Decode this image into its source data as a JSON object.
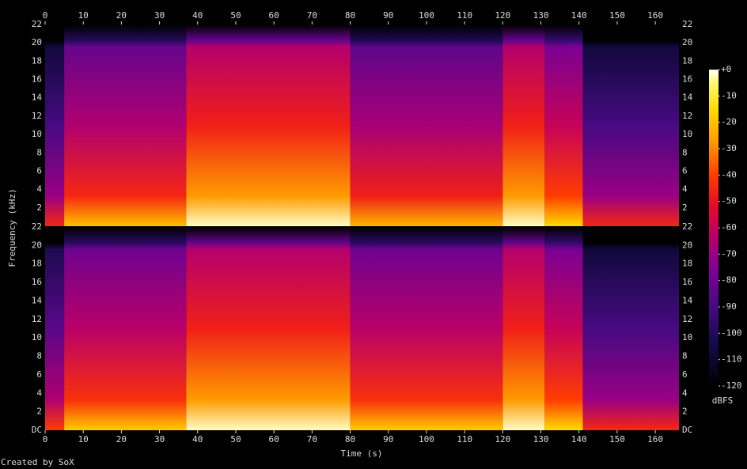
{
  "chart_data": {
    "type": "spectrogram",
    "x_label": "Time (s)",
    "y_label": "Frequency (kHz)",
    "credit": "Created by SoX",
    "xlim": [
      0,
      166.2
    ],
    "xticks": [
      0,
      10,
      20,
      30,
      40,
      50,
      60,
      70,
      80,
      90,
      100,
      110,
      120,
      130,
      140,
      150,
      160
    ],
    "bins": [
      0,
      5,
      37,
      80,
      120,
      131,
      141,
      166.2
    ],
    "channels": [
      {
        "ylim": [
          0,
          22
        ],
        "yticks": [
          2,
          4,
          6,
          8,
          10,
          12,
          14,
          16,
          18,
          20,
          22
        ],
        "values": [
          -85,
          -60,
          -42,
          -62,
          -42,
          -55,
          -85
        ]
      },
      {
        "ylim": [
          0,
          22
        ],
        "yticks": [
          {
            "value": 0,
            "label": "DC"
          },
          2,
          4,
          6,
          8,
          10,
          12,
          14,
          16,
          18,
          20,
          22
        ],
        "values": [
          -80,
          -58,
          -42,
          -58,
          -42,
          -55,
          -85
        ]
      }
    ],
    "colorbar": {
      "label": "dBFS",
      "lim": [
        -120,
        0
      ],
      "ticks": [
        {
          "value": 0,
          "label": "+0"
        },
        -10,
        -20,
        -30,
        -40,
        -50,
        -60,
        -70,
        -80,
        -90,
        -100,
        -110,
        -120
      ]
    }
  }
}
